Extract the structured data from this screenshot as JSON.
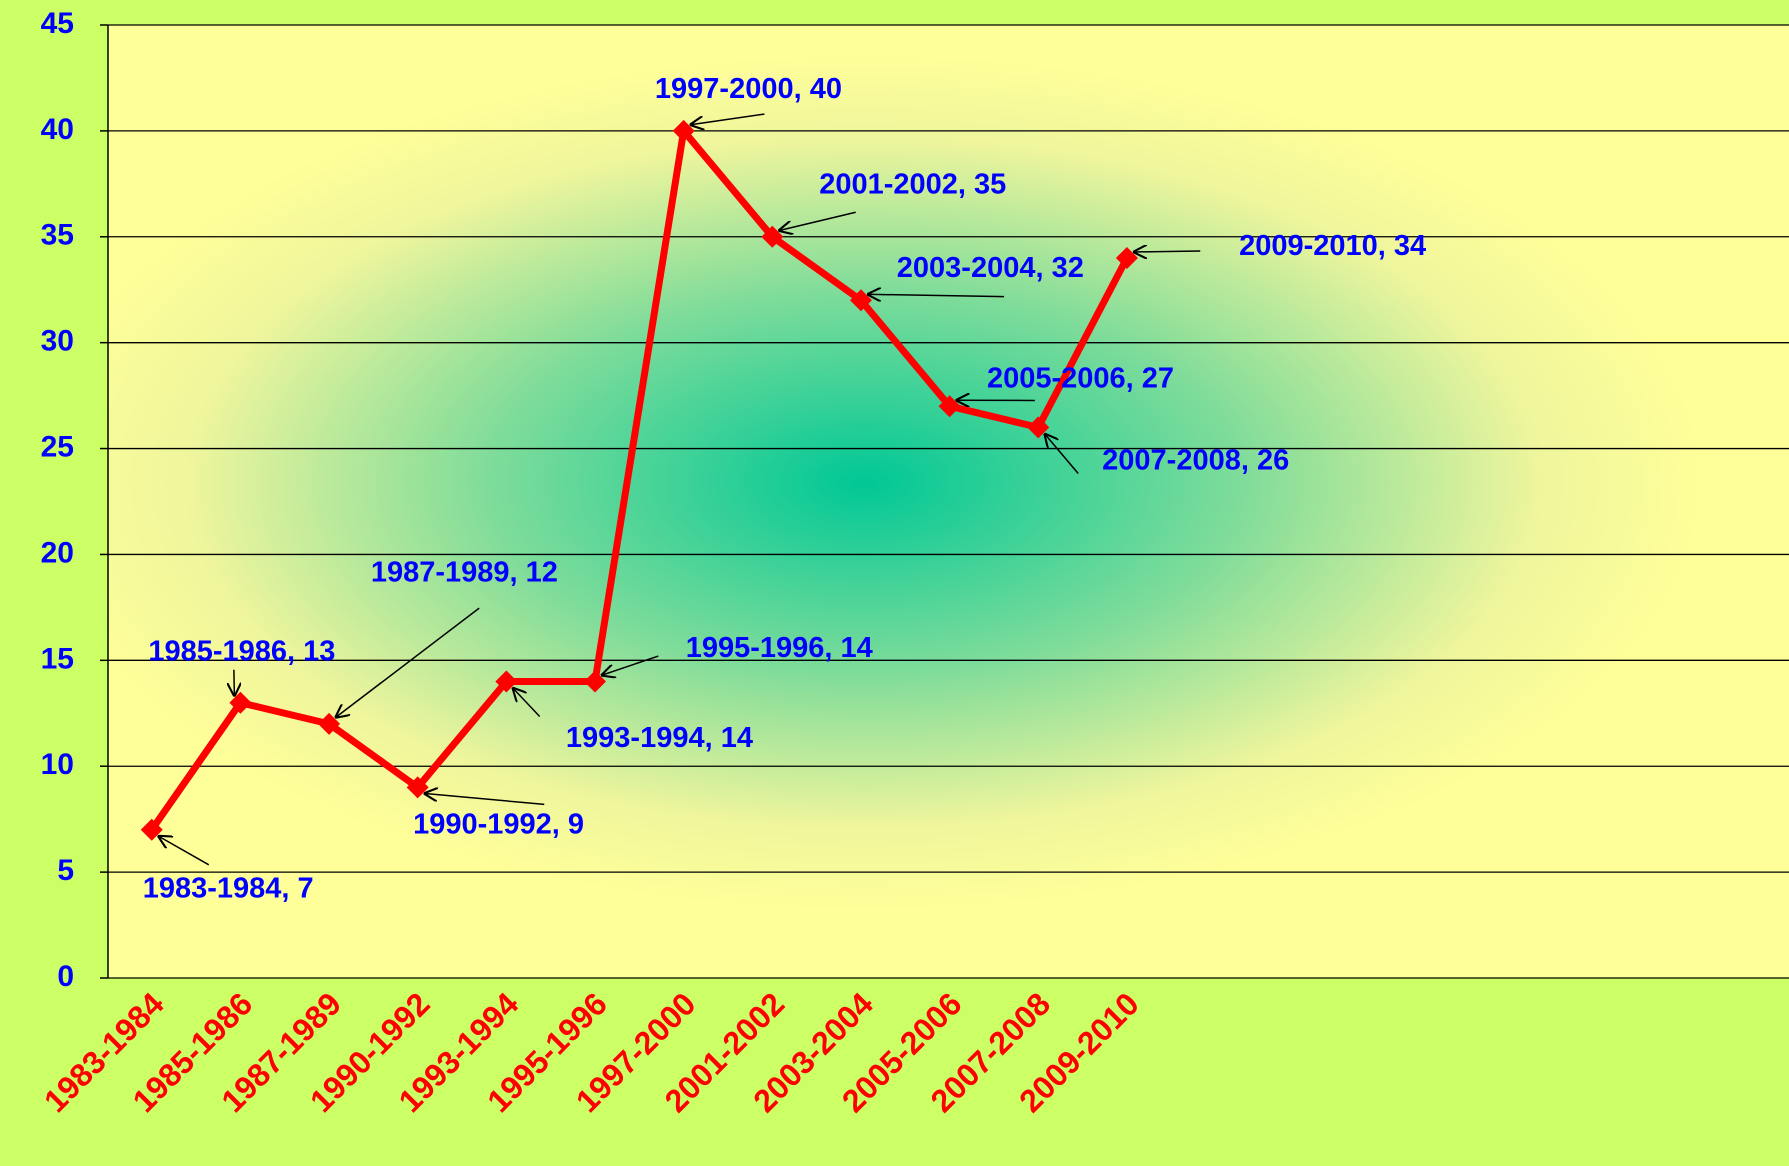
{
  "chart_data": {
    "type": "line",
    "categories": [
      "1983-1984",
      "1985-1986",
      "1987-1989",
      "1990-1992",
      "1993-1994",
      "1995-1996",
      "1997-2000",
      "2001-2002",
      "2003-2004",
      "2005-2006",
      "2007-2008",
      "2009-2010"
    ],
    "values": [
      7,
      13,
      12,
      9,
      14,
      14,
      40,
      35,
      32,
      27,
      26,
      34
    ],
    "value_labels": [
      "1983-1984, 7",
      "1985-1986, 13",
      "1987-1989, 12",
      "1990-1992, 9",
      "1993-1994, 14",
      "1995-1996, 14",
      "1997-2000, 40",
      "2001-2002, 35",
      "2003-2004, 32",
      "2005-2006, 27",
      "2007-2008, 26",
      "2009-2010, 34"
    ],
    "color": "#ff0000",
    "ylim": [
      0,
      45
    ],
    "yticks": [
      0,
      5,
      10,
      15,
      20,
      25,
      30,
      35,
      40,
      45
    ],
    "grid": true
  }
}
